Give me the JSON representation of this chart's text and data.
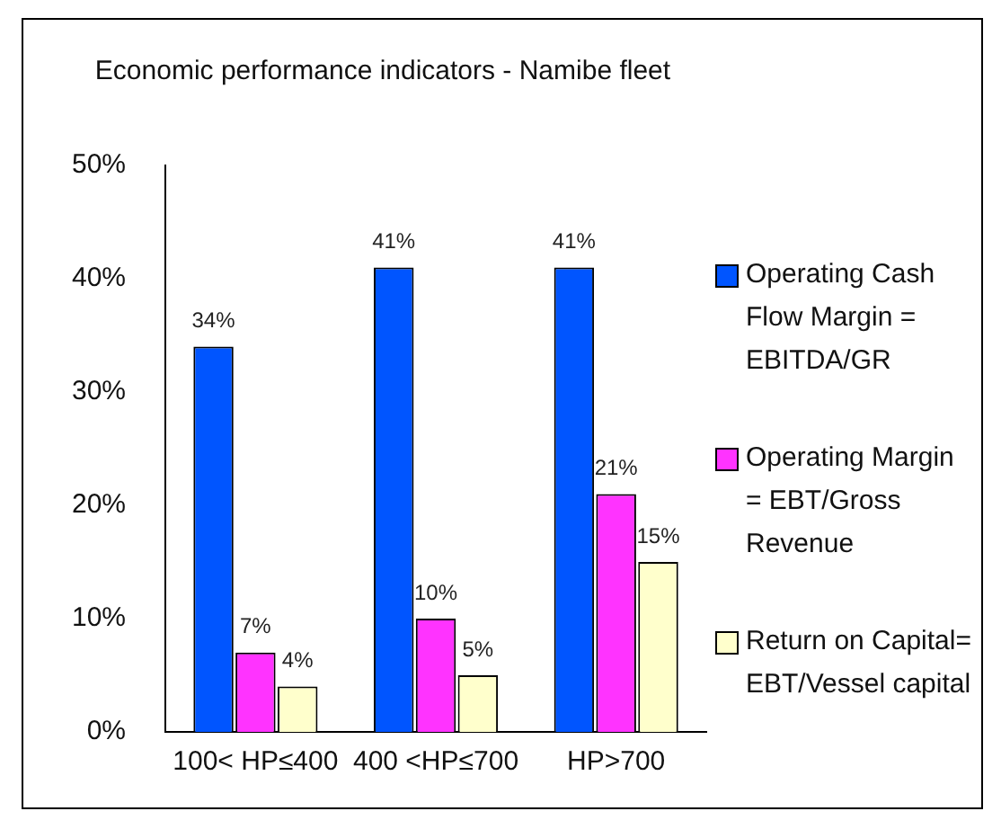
{
  "chart_data": {
    "type": "bar",
    "title": "Economic performance indicators - Namibe fleet",
    "categories": [
      "100< HP≤400",
      "400 <HP≤700",
      "HP>700"
    ],
    "series": [
      {
        "name": "Operating Cash Flow Margin = EBITDA/GR",
        "color": "#0055ff",
        "values": [
          34,
          41,
          41
        ],
        "value_labels": [
          "34%",
          "41%",
          "41%"
        ]
      },
      {
        "name": "Operating Margin = EBT/Gross Revenue",
        "color": "#ff33ff",
        "values": [
          7,
          10,
          21
        ],
        "value_labels": [
          "7%",
          "10%",
          "21%"
        ]
      },
      {
        "name": "Return on Capital= EBT/Vessel capital",
        "color": "#ffffcc",
        "values": [
          4,
          5,
          15
        ],
        "value_labels": [
          "4%",
          "5%",
          "15%"
        ]
      }
    ],
    "ylim": [
      0,
      50
    ],
    "yticks": [
      {
        "value": 0,
        "label": "0%"
      },
      {
        "value": 10,
        "label": "10%"
      },
      {
        "value": 20,
        "label": "20%"
      },
      {
        "value": 30,
        "label": "30%"
      },
      {
        "value": 40,
        "label": "40%"
      },
      {
        "value": 50,
        "label": "50%"
      }
    ],
    "grid": false,
    "legend": "right"
  }
}
